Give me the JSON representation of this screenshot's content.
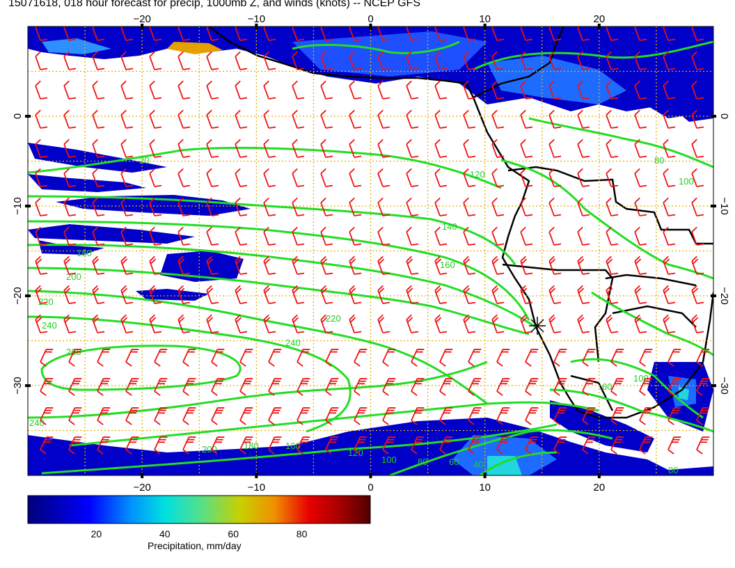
{
  "title": "15071618, 018 hour forecast for precip, 1000mb Z, and winds (knots) -- NCEP GFS",
  "map": {
    "lon_range": [
      -30,
      30
    ],
    "lat_range": [
      -40,
      10
    ],
    "lon_ticks": [
      "−20",
      "−10",
      "0",
      "10",
      "20"
    ],
    "lat_ticks_left": [
      "0",
      "−10",
      "−20",
      "−30"
    ],
    "lat_ticks_right": [
      "0",
      "−10",
      "−20",
      "−30"
    ],
    "lon_tick_values": [
      -20,
      -10,
      0,
      10,
      20
    ],
    "lat_tick_values": [
      0,
      -10,
      -20,
      -30
    ],
    "grid_style": "dotted",
    "grid_color": "#e0b000",
    "contour_color": "#22dd22",
    "barb_color": "#ee1111",
    "coast_color": "#000000",
    "precip_colors": [
      "#000080",
      "#0000dd",
      "#1e6cff",
      "#22d6e0"
    ],
    "marker": "asterisk",
    "contours": [
      {
        "label": "20",
        "lat": -5
      },
      {
        "label": "120",
        "lat": -7
      },
      {
        "label": "140",
        "lat": -12
      },
      {
        "label": "160",
        "lat": -16
      },
      {
        "label": "180",
        "lat": -15
      },
      {
        "label": "200",
        "lat": -18
      },
      {
        "label": "220",
        "lat": -21
      },
      {
        "label": "240",
        "lat": -24
      },
      {
        "label": "260",
        "lat": -27
      }
    ],
    "contour_labels_visible": [
      "20",
      "120",
      "140",
      "160",
      "180",
      "200",
      "220",
      "240",
      "240",
      "260",
      "220",
      "240",
      "200",
      "180",
      "160",
      "120",
      "100",
      "80",
      "60",
      "40",
      "80",
      "100",
      "60",
      "100",
      "80"
    ]
  },
  "colorbar": {
    "label": "Precipitation, mm/day",
    "range": [
      0,
      100
    ],
    "ticks": [
      "20",
      "40",
      "60",
      "80"
    ],
    "colors": [
      "#00007a",
      "#0000ff",
      "#0080ff",
      "#00e0e0",
      "#40e0a0",
      "#c0d000",
      "#e08000",
      "#e00000",
      "#800000",
      "#500000"
    ]
  }
}
